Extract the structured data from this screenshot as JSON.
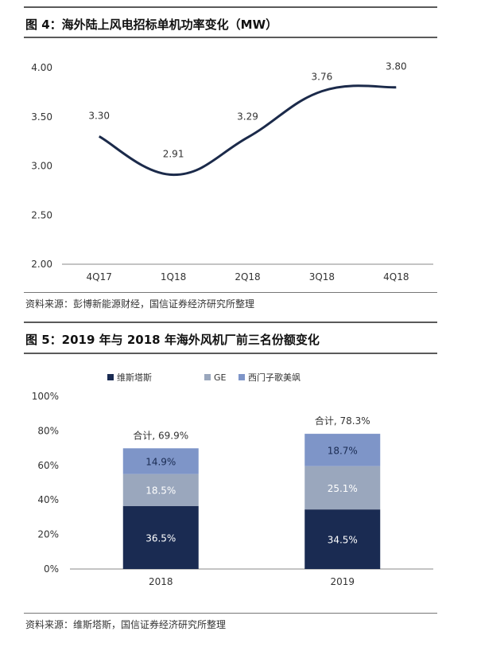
{
  "fig4": {
    "title": "图 4：海外陆上风电招标单机功率变化（MW）",
    "source": "资料来源：彭博新能源财经，国信证券经济研究所整理"
  },
  "fig5": {
    "title": "图 5：2019 年与 2018 年海外风机厂前三名份额变化",
    "source": "资料来源：维斯塔斯，国信证券经济研究所整理"
  },
  "colors": {
    "line": "#1b2a4a",
    "vestas": "#1a2b52",
    "ge": "#9aa7bd",
    "siemens": "#7e95c8",
    "axis": "#888888"
  },
  "chart_data": [
    {
      "type": "line",
      "x": [
        "4Q17",
        "1Q18",
        "2Q18",
        "3Q18",
        "4Q18"
      ],
      "values": [
        3.3,
        2.91,
        3.29,
        3.76,
        3.8
      ],
      "data_labels": [
        "3.30",
        "2.91",
        "3.29",
        "3.76",
        "3.80"
      ],
      "ylim": [
        2.0,
        4.0
      ],
      "yticks": [
        "2.00",
        "2.50",
        "3.00",
        "3.50",
        "4.00"
      ],
      "grid": false
    },
    {
      "type": "bar",
      "stacked": true,
      "categories": [
        "2018",
        "2019"
      ],
      "series": [
        {
          "name": "维斯塔斯",
          "values": [
            36.5,
            34.5
          ],
          "labels": [
            "36.5%",
            "34.5%"
          ]
        },
        {
          "name": "GE",
          "values": [
            18.5,
            25.1
          ],
          "labels": [
            "18.5%",
            "25.1%"
          ]
        },
        {
          "name": "西门子歌美飒",
          "values": [
            14.9,
            18.7
          ],
          "labels": [
            "14.9%",
            "18.7%"
          ]
        }
      ],
      "totals": [
        "合计, 69.9%",
        "合计, 78.3%"
      ],
      "ylim": [
        0,
        100
      ],
      "yticks": [
        "0%",
        "20%",
        "40%",
        "60%",
        "80%",
        "100%"
      ],
      "legend_position": "top-left",
      "grid": false
    }
  ]
}
